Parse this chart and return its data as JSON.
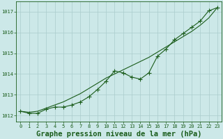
{
  "title": "Graphe pression niveau de la mer (hPa)",
  "x_hours": [
    0,
    1,
    2,
    3,
    4,
    5,
    6,
    7,
    8,
    9,
    10,
    11,
    12,
    13,
    14,
    15,
    16,
    17,
    18,
    19,
    20,
    21,
    22,
    23
  ],
  "jagged_y": [
    1012.2,
    1012.1,
    1012.1,
    1012.3,
    1012.4,
    1012.4,
    1012.5,
    1012.65,
    1012.9,
    1013.25,
    1013.65,
    1014.15,
    1014.05,
    1013.85,
    1013.75,
    1014.05,
    1014.85,
    1015.2,
    1015.65,
    1015.95,
    1016.25,
    1016.55,
    1017.05,
    1017.2
  ],
  "smooth_y": [
    1012.2,
    1012.15,
    1012.2,
    1012.35,
    1012.5,
    1012.65,
    1012.85,
    1013.05,
    1013.3,
    1013.55,
    1013.8,
    1014.0,
    1014.2,
    1014.4,
    1014.6,
    1014.8,
    1015.05,
    1015.3,
    1015.55,
    1015.8,
    1016.05,
    1016.35,
    1016.7,
    1017.2
  ],
  "ylim": [
    1011.7,
    1017.5
  ],
  "yticks": [
    1012,
    1013,
    1014,
    1015,
    1016,
    1017
  ],
  "bg_color": "#cce8e8",
  "grid_color": "#aacccc",
  "line_color": "#1a5c1a",
  "marker": "P",
  "marker_size": 2.2,
  "line_width": 0.8,
  "title_fontsize": 7.5,
  "tick_fontsize": 5.0
}
